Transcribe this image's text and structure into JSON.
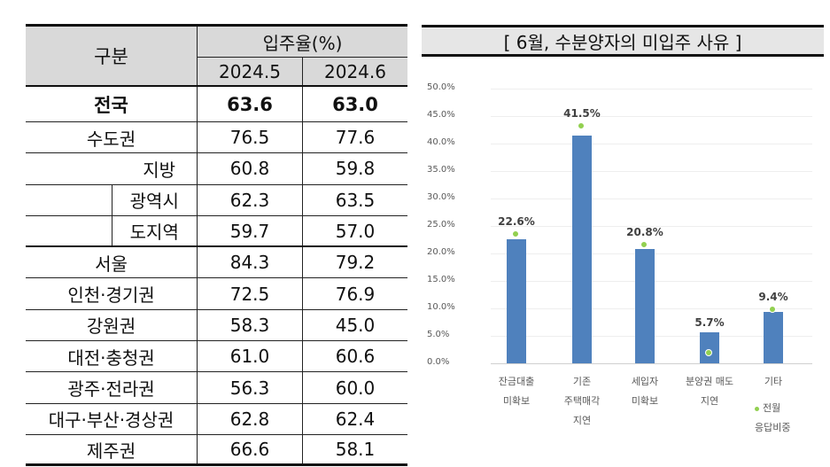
{
  "table": {
    "header": {
      "category": "구분",
      "group": "입주율(%)",
      "periods": [
        "2024.5",
        "2024.6"
      ]
    },
    "rows": [
      {
        "label": "전국",
        "v1": "63.6",
        "v2": "63.0",
        "bold": true
      },
      {
        "label": "수도권",
        "v1": "76.5",
        "v2": "77.6"
      },
      {
        "label": "지방",
        "v1": "60.8",
        "v2": "59.8"
      },
      {
        "label": "광역시",
        "v1": "62.3",
        "v2": "63.5"
      },
      {
        "label": "도지역",
        "v1": "59.7",
        "v2": "57.0"
      },
      {
        "label": "서울",
        "v1": "84.3",
        "v2": "79.2"
      },
      {
        "label": "인천·경기권",
        "v1": "72.5",
        "v2": "76.9"
      },
      {
        "label": "강원권",
        "v1": "58.3",
        "v2": "45.0"
      },
      {
        "label": "대전·충청권",
        "v1": "61.0",
        "v2": "60.6"
      },
      {
        "label": "광주·전라권",
        "v1": "56.3",
        "v2": "60.0"
      },
      {
        "label": "대구·부산·경상권",
        "v1": "62.8",
        "v2": "62.4"
      },
      {
        "label": "제주권",
        "v1": "66.6",
        "v2": "58.1"
      }
    ]
  },
  "chart_data": {
    "type": "bar",
    "title": "[ 6월, 수분양자의 미입주 사유 ]",
    "categories": [
      "잔금대출 미확보",
      "기존 주택매각 지연",
      "세입자 미확보",
      "분양권 매도 지연",
      "기타"
    ],
    "category_lines": [
      [
        "잔금대출",
        "미확보"
      ],
      [
        "기존",
        "주택매각",
        "지연"
      ],
      [
        "세입자",
        "미확보"
      ],
      [
        "분양권 매도",
        "지연"
      ],
      [
        "기타"
      ]
    ],
    "series": [
      {
        "name": "6월",
        "type": "bar",
        "color": "#4f81bd",
        "values": [
          22.6,
          41.5,
          20.8,
          5.7,
          9.4
        ],
        "labels": [
          "22.6%",
          "41.5%",
          "20.8%",
          "5.7%",
          "9.4%"
        ]
      },
      {
        "name": "전월 응답비중",
        "type": "marker",
        "color": "#92d050",
        "values": [
          23.4,
          43.1,
          21.5,
          1.8,
          9.6
        ]
      }
    ],
    "xlabel": "",
    "ylabel": "",
    "ylim": [
      0,
      50
    ],
    "yticks": [
      "0.0%",
      "5.0%",
      "10.0%",
      "15.0%",
      "20.0%",
      "25.0%",
      "30.0%",
      "35.0%",
      "40.0%",
      "45.0%",
      "50.0%"
    ],
    "grid": true,
    "legend": {
      "label_lines": [
        "전월",
        "응답비중"
      ],
      "position": "bottom-right"
    }
  }
}
